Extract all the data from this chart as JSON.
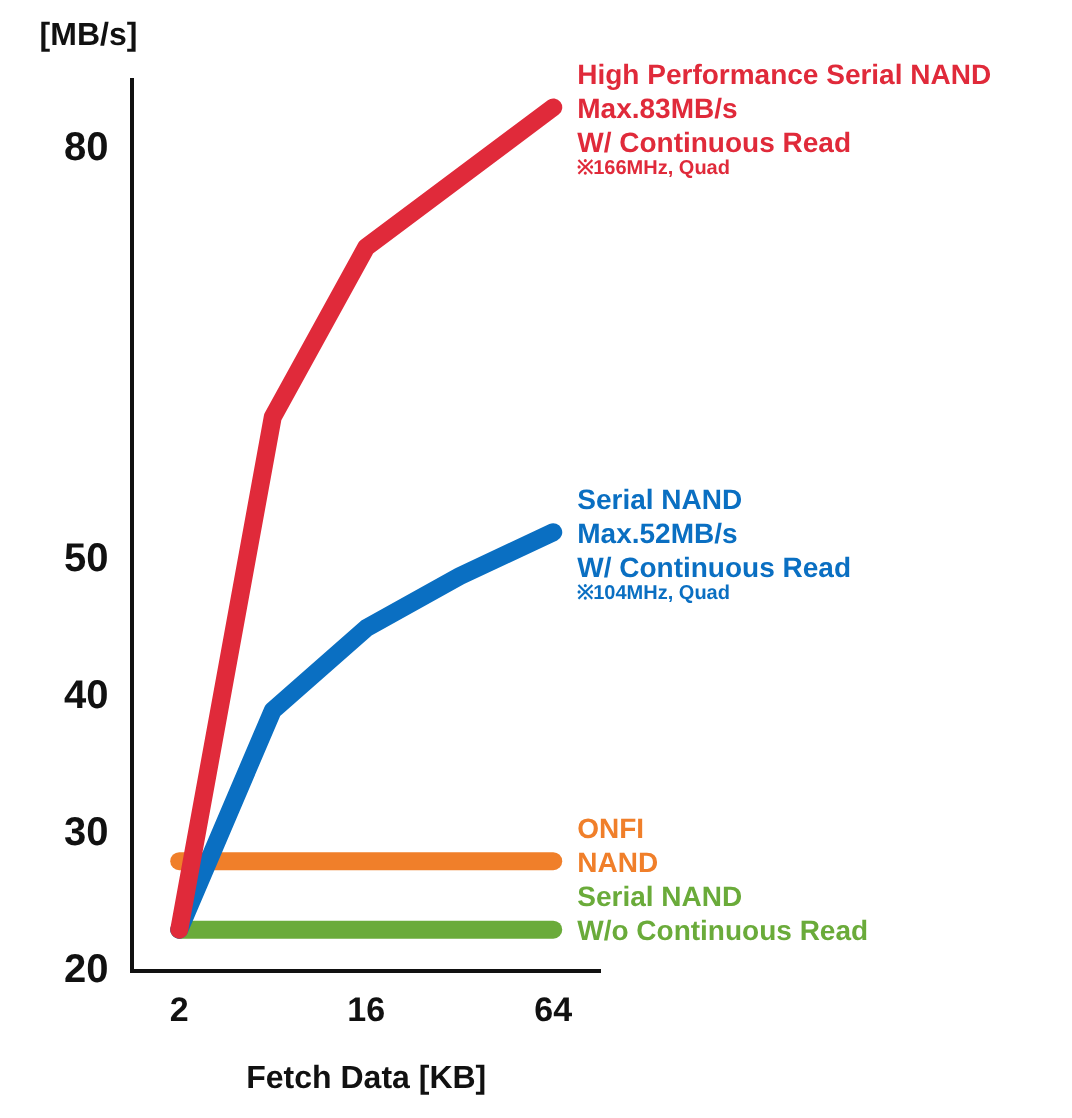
{
  "chart_data": {
    "type": "line",
    "xlabel": "Fetch Data [KB]",
    "ylabel": "[MB/s]",
    "categories": [
      "2",
      null,
      "16",
      null,
      "64"
    ],
    "ylim": [
      20,
      85
    ],
    "yticks": [
      20,
      30,
      40,
      50,
      80
    ],
    "grid": false,
    "legend": false,
    "marker": "none",
    "line_style": "solid",
    "series": [
      {
        "name": "High Performance Serial NAND\nMax.83MB/s\nW/ Continuous Read",
        "color": "#e02a3a",
        "values": [
          23,
          60.4,
          72.8,
          null,
          83
        ]
      },
      {
        "name": "Serial NAND\nMax.52MB/s\nW/ Continuous Read",
        "color": "#0a6fc2",
        "values": [
          23,
          39,
          45,
          48.8,
          52
        ]
      },
      {
        "name": "ONFI\nNAND",
        "color": "#f07f2a",
        "values": [
          28,
          28,
          28,
          28,
          28
        ]
      },
      {
        "name": "Serial NAND\nW/o Continuous Read",
        "color": "#6aab3a",
        "values": [
          23,
          23,
          23,
          23,
          23
        ]
      }
    ],
    "annotations": [
      "※166MHz, Quad",
      "※104MHz, Quad"
    ]
  }
}
